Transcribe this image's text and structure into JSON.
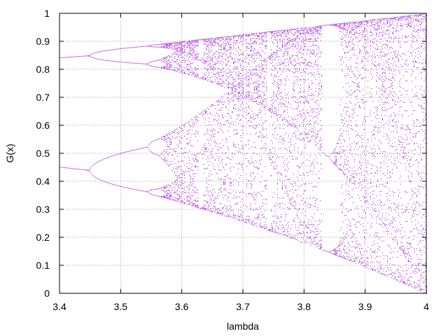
{
  "chart_data": {
    "type": "scatter",
    "xlabel": "lambda",
    "ylabel": "G(x)",
    "xlim": [
      3.4,
      4.0
    ],
    "ylim": [
      0,
      1
    ],
    "x_ticks": [
      "3.4",
      "3.5",
      "3.6",
      "3.7",
      "3.8",
      "3.9",
      "4"
    ],
    "y_ticks": [
      "0",
      "0.1",
      "0.2",
      "0.3",
      "0.4",
      "0.5",
      "0.6",
      "0.7",
      "0.8",
      "0.9",
      "1"
    ],
    "grid": true,
    "legend": "none",
    "series": [
      {
        "color": "#9400d3",
        "lambda_range": [
          3.4,
          4.0
        ],
        "lambda_step": 0.002,
        "points_per_lambda": 40,
        "map": "x_next = lambda * x * (1 - x)"
      }
    ]
  }
}
